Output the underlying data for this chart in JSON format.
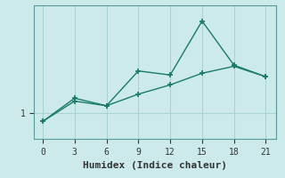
{
  "xlabel": "Humidex (Indice chaleur)",
  "ylabel": "",
  "background_color": "#cceaea",
  "grid_color": "#aad4d4",
  "line_color": "#1a7a6a",
  "ytick_labels": [
    "1"
  ],
  "ytick_values": [
    1.0
  ],
  "xlim": [
    -0.8,
    22
  ],
  "ylim": [
    0.55,
    2.85
  ],
  "xticks": [
    0,
    3,
    6,
    9,
    12,
    15,
    18,
    21
  ],
  "line1_x": [
    0,
    3,
    6,
    9,
    12,
    15,
    18,
    21
  ],
  "line1_y": [
    0.85,
    1.25,
    1.12,
    1.72,
    1.65,
    2.58,
    1.82,
    1.62
  ],
  "line2_x": [
    0,
    3,
    6,
    9,
    12,
    15,
    18,
    21
  ],
  "line2_y": [
    0.85,
    1.2,
    1.12,
    1.32,
    1.48,
    1.68,
    1.8,
    1.62
  ],
  "marker": "+",
  "markersize": 5,
  "linewidth": 1.0,
  "font_family": "monospace",
  "tick_fontsize": 7,
  "xlabel_fontsize": 8
}
